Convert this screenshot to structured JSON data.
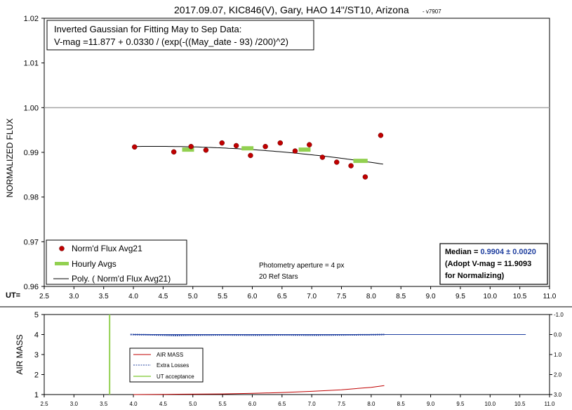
{
  "chart_data": [
    {
      "type": "scatter",
      "title": "2017.09.07, KIC846(V), Gary, HAO 14\"/ST10, Arizona",
      "title_suffix": "- v7907",
      "ylabel": "NORMALIZED FLUX",
      "xlabel_prefix": "UT=",
      "xlim": [
        2.5,
        11.0
      ],
      "ylim": [
        0.96,
        1.02
      ],
      "x_ticks": [
        "2.5",
        "3.0",
        "3.5",
        "4.0",
        "4.5",
        "5.0",
        "5.5",
        "6.0",
        "6.5",
        "7.0",
        "7.5",
        "8.0",
        "8.5",
        "9.0",
        "9.5",
        "10.0",
        "10.5",
        "11.0"
      ],
      "y_ticks": [
        "0.96",
        "0.97",
        "0.98",
        "0.99",
        "1.00",
        "1.01",
        "1.02"
      ],
      "reference_line": 1.0,
      "annotation_box": {
        "line1": "Inverted Gaussian for Fitting May to Sep Data:",
        "line2": "V-mag =11.877 + 0.0330 / (exp(-((May_date - 93) /200)^2)"
      },
      "photometry_text": {
        "line1": "Photometry aperture = 4 px",
        "line2": "20 Ref Stars"
      },
      "median_box": {
        "label": "Median = ",
        "value": "0.9904 ± 0.0020",
        "line2": "(Adopt V-mag = 11.9093",
        "line3": " for Normalizing)"
      },
      "legend": {
        "placement": "bottom-left",
        "items": [
          "Norm'd Flux Avg21",
          "Hourly Avgs",
          "Poly. ( Norm'd Flux Avg21)"
        ]
      },
      "series": [
        {
          "name": "Norm'd Flux Avg21",
          "color": "#c00000",
          "points": [
            [
              4.02,
              0.9912
            ],
            [
              4.68,
              0.9901
            ],
            [
              4.97,
              0.9913
            ],
            [
              5.22,
              0.9905
            ],
            [
              5.49,
              0.9921
            ],
            [
              5.73,
              0.9915
            ],
            [
              5.97,
              0.9893
            ],
            [
              6.22,
              0.9913
            ],
            [
              6.47,
              0.9921
            ],
            [
              6.72,
              0.9903
            ],
            [
              6.96,
              0.9917
            ],
            [
              7.18,
              0.9889
            ],
            [
              7.42,
              0.9878
            ],
            [
              7.66,
              0.987
            ],
            [
              7.9,
              0.9845
            ],
            [
              8.16,
              0.9938
            ]
          ]
        },
        {
          "name": "Hourly Avgs",
          "color": "#92d050",
          "segments": [
            [
              4.82,
              5.02,
              0.9906
            ],
            [
              5.82,
              6.02,
              0.9909
            ],
            [
              6.78,
              6.98,
              0.9906
            ],
            [
              7.7,
              7.94,
              0.9881
            ]
          ]
        },
        {
          "name": "Poly. ( Norm'd Flux Avg21)",
          "color": "#000000",
          "poly": [
            0.986286,
            0.002328,
            -0.000268
          ],
          "x_range": [
            4.0,
            8.2
          ]
        }
      ]
    },
    {
      "type": "line",
      "ylabel": "AIR MASS",
      "xlim": [
        2.5,
        11.0
      ],
      "ylim": [
        1,
        5
      ],
      "y2lim": [
        3.0,
        -1.0
      ],
      "x_ticks": [
        "2.5",
        "3.0",
        "3.5",
        "4.0",
        "4.5",
        "5.0",
        "5.5",
        "6.0",
        "6.5",
        "7.0",
        "7.5",
        "8.0",
        "8.5",
        "9.0",
        "9.5",
        "10.0",
        "10.5",
        "11.0"
      ],
      "y_ticks": [
        "1",
        "2",
        "3",
        "4",
        "5"
      ],
      "y2_ticks": [
        "-1.0",
        "0.0",
        "1.0",
        "2.0",
        "3.0"
      ],
      "legend": {
        "placement": "center-left",
        "items": [
          "AIR MASS",
          "Extra Losses",
          "UT acceptance"
        ]
      },
      "ut_acceptance": 3.6,
      "series": [
        {
          "name": "AIR MASS",
          "color": "#c00000",
          "axis": "left",
          "points": [
            [
              4.0,
              1.0
            ],
            [
              4.5,
              1.01
            ],
            [
              5.0,
              1.02
            ],
            [
              5.5,
              1.03
            ],
            [
              6.0,
              1.06
            ],
            [
              6.5,
              1.1
            ],
            [
              7.0,
              1.16
            ],
            [
              7.5,
              1.24
            ],
            [
              8.0,
              1.36
            ],
            [
              8.22,
              1.45
            ]
          ]
        },
        {
          "name": "Extra Losses",
          "color": "#1f3f9f",
          "axis": "right",
          "points": [
            [
              3.95,
              0.0
            ],
            [
              4.2,
              0.01
            ],
            [
              4.4,
              0.02
            ],
            [
              4.7,
              0.05
            ],
            [
              5.0,
              0.03
            ],
            [
              5.5,
              0.02
            ],
            [
              6.0,
              0.03
            ],
            [
              6.5,
              0.02
            ],
            [
              7.0,
              0.03
            ],
            [
              7.5,
              0.02
            ],
            [
              8.0,
              0.01
            ],
            [
              8.22,
              0.0
            ]
          ]
        },
        {
          "name": "Extra Losses baseline",
          "color": "#1f3f9f",
          "axis": "right",
          "points": [
            [
              4.0,
              0.0
            ],
            [
              10.6,
              0.0
            ]
          ]
        }
      ]
    }
  ],
  "colors": {
    "grid_ref": "#a6a6a6",
    "axis": "#000000",
    "median_value": "#1f3f9f"
  }
}
